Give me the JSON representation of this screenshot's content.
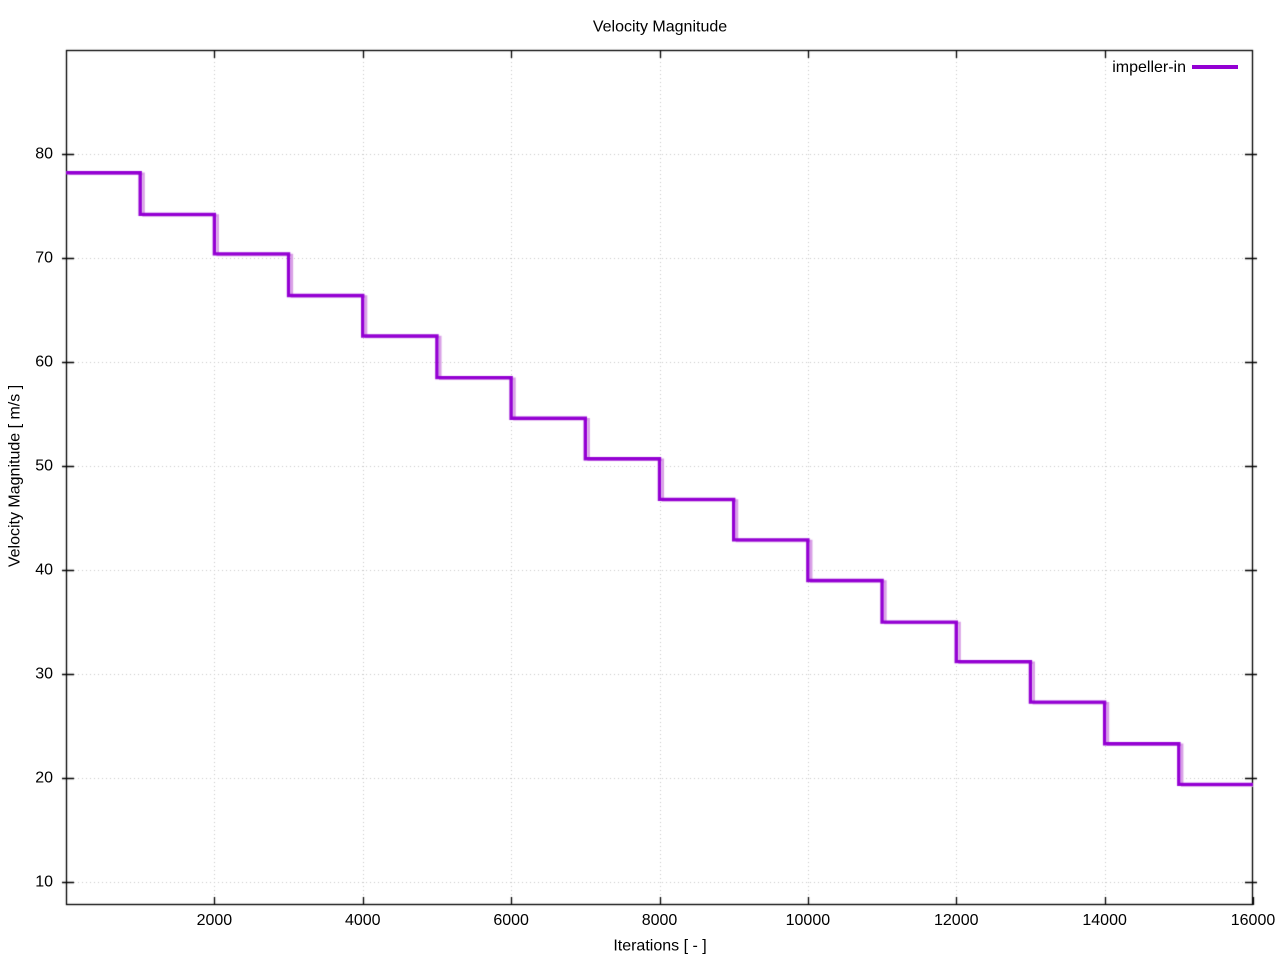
{
  "colors": {
    "line": "#9400d3",
    "line_highlight": "#d9a0e6",
    "grid": "#c9c9c9",
    "border": "#000000",
    "text": "#000000",
    "background": "#ffffff"
  },
  "legend": {
    "label": "impeller-in"
  },
  "chart_data": {
    "type": "line",
    "style": "steps",
    "title": "Velocity Magnitude",
    "xlabel": "Iterations [ - ]",
    "ylabel": "Velocity Magnitude [ m/s ]",
    "xlim": [
      0,
      16000
    ],
    "ylim": [
      7.8,
      90.0
    ],
    "xticks": [
      2000,
      4000,
      6000,
      8000,
      10000,
      12000,
      14000,
      16000
    ],
    "yticks": [
      10,
      20,
      30,
      40,
      50,
      60,
      70,
      80
    ],
    "grid": true,
    "legend_position": "top-right-inside",
    "step_interval": 1000,
    "series": [
      {
        "name": "impeller-in",
        "color": "#9400d3",
        "secondary_color": "#d9a0e6",
        "step_values": [
          78.2,
          74.2,
          70.4,
          66.4,
          62.5,
          58.5,
          54.6,
          50.7,
          46.8,
          42.9,
          39.0,
          35.0,
          31.2,
          27.3,
          23.3,
          19.4
        ]
      }
    ]
  }
}
